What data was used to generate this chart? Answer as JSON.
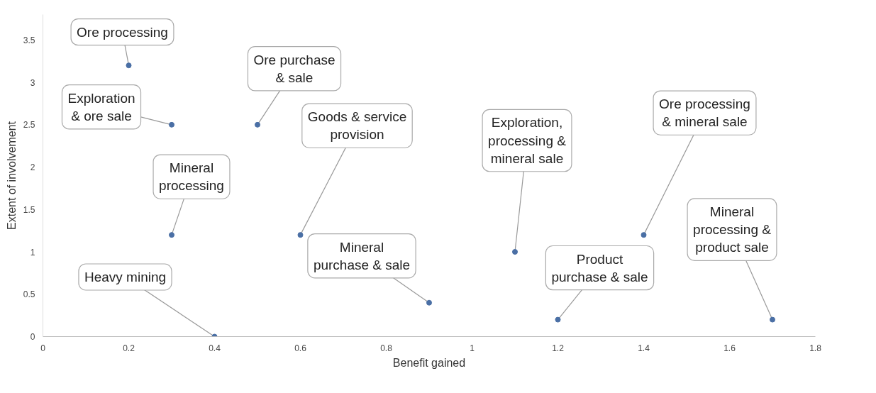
{
  "chart_data": {
    "type": "scatter",
    "xlabel": "Benefit gained",
    "ylabel": "Extent of involvement",
    "x": [
      0.2,
      0.3,
      0.5,
      0.3,
      0.4,
      0.6,
      0.9,
      1.1,
      1.2,
      1.4,
      1.7
    ],
    "series": [
      {
        "color": "#4a6fa5",
        "values": [
          3.2,
          2.5,
          2.5,
          1.2,
          0,
          1.2,
          0.4,
          1.0,
          0.2,
          1.2,
          0.2
        ]
      }
    ],
    "marker": "circle",
    "grid": false,
    "xlim": [
      0,
      1.8
    ],
    "xticks": [
      0,
      0.2,
      0.4,
      0.6,
      0.8,
      1,
      1.2,
      1.4,
      1.6,
      1.8
    ],
    "ylim": [
      0,
      3.8
    ],
    "yticks": [
      0,
      0.5,
      1,
      1.5,
      2,
      2.5,
      3,
      3.5
    ],
    "annotations": [
      {
        "text": "Ore processing",
        "x": 0.2,
        "y": 3.2
      },
      {
        "text": "Exploration\n& ore sale",
        "x": 0.3,
        "y": 2.5
      },
      {
        "text": "Ore purchase\n& sale",
        "x": 0.5,
        "y": 2.5
      },
      {
        "text": "Mineral\nprocessing",
        "x": 0.3,
        "y": 1.2
      },
      {
        "text": "Heavy mining",
        "x": 0.4,
        "y": 0
      },
      {
        "text": "Goods & service\nprovision",
        "x": 0.6,
        "y": 1.2
      },
      {
        "text": "Mineral\npurchase & sale",
        "x": 0.9,
        "y": 0.4
      },
      {
        "text": "Exploration,\nprocessing &\nmineral sale",
        "x": 1.1,
        "y": 1.0
      },
      {
        "text": "Product\npurchase & sale",
        "x": 1.2,
        "y": 0.2
      },
      {
        "text": "Ore processing\n& mineral sale",
        "x": 1.4,
        "y": 1.2
      },
      {
        "text": "Mineral\nprocessing &\nproduct sale",
        "x": 1.7,
        "y": 0.2
      }
    ]
  }
}
